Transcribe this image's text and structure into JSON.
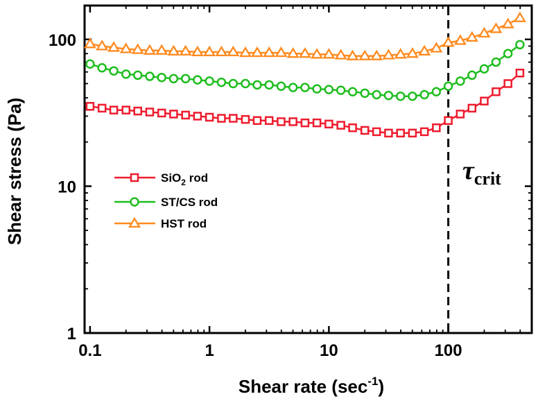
{
  "chart_data": {
    "type": "scatter",
    "title": "",
    "xlabel": "Shear rate (sec",
    "xlabel_sup": "-1",
    "xlabel_close": ")",
    "ylabel": "Shear stress (Pa)",
    "xscale": "log",
    "yscale": "log",
    "xlim": [
      0.09,
      500
    ],
    "ylim": [
      1,
      170
    ],
    "xticks": [
      0.1,
      1,
      10,
      100
    ],
    "xtick_labels": [
      "0.1",
      "1",
      "10",
      "100"
    ],
    "yticks": [
      1,
      10,
      100
    ],
    "ytick_labels": [
      "1",
      "10",
      "100"
    ],
    "legend_position": "left-middle",
    "annotation": {
      "symbol": "τ",
      "subscript": "crit",
      "x": 100
    },
    "series": [
      {
        "name_main": "SiO",
        "name_sub": "2",
        "name_rest": " rod",
        "marker": "square",
        "color": "#ee1c2e",
        "x": [
          0.1,
          0.126,
          0.158,
          0.2,
          0.251,
          0.316,
          0.398,
          0.501,
          0.631,
          0.794,
          1,
          1.26,
          1.58,
          2,
          2.51,
          3.16,
          3.98,
          5.01,
          6.31,
          7.94,
          10,
          12.6,
          15.8,
          20,
          25.1,
          31.6,
          39.8,
          50.1,
          63.1,
          79.4,
          100,
          126,
          158,
          200,
          251,
          316,
          398
        ],
        "y": [
          35,
          34,
          33,
          33,
          32.5,
          32,
          31.5,
          31,
          30.5,
          30,
          29.5,
          29,
          29,
          28.5,
          28,
          28,
          27.5,
          27.5,
          27,
          27,
          26.5,
          26,
          25,
          24,
          23.5,
          23,
          23,
          23,
          23.5,
          25,
          28,
          31,
          34,
          38,
          44,
          50,
          59
        ]
      },
      {
        "name_main": "ST/CS rod",
        "name_sub": "",
        "name_rest": "",
        "marker": "circle",
        "color": "#1ebd1e",
        "x": [
          0.1,
          0.126,
          0.158,
          0.2,
          0.251,
          0.316,
          0.398,
          0.501,
          0.631,
          0.794,
          1,
          1.26,
          1.58,
          2,
          2.51,
          3.16,
          3.98,
          5.01,
          6.31,
          7.94,
          10,
          12.6,
          15.8,
          20,
          25.1,
          31.6,
          39.8,
          50.1,
          63.1,
          79.4,
          100,
          126,
          158,
          200,
          251,
          316,
          398
        ],
        "y": [
          68,
          64,
          61,
          58,
          57,
          56,
          55,
          54,
          54,
          53,
          52,
          51,
          50,
          50,
          49,
          49,
          48,
          47,
          47,
          46,
          45.5,
          45,
          44,
          43,
          42,
          41.5,
          41,
          41,
          42,
          44,
          48,
          52,
          57,
          63,
          70,
          80,
          92
        ]
      },
      {
        "name_main": "HST rod",
        "name_sub": "",
        "name_rest": "",
        "marker": "triangle",
        "color": "#ff8a1f",
        "x": [
          0.1,
          0.126,
          0.158,
          0.2,
          0.251,
          0.316,
          0.398,
          0.501,
          0.631,
          0.794,
          1,
          1.26,
          1.58,
          2,
          2.51,
          3.16,
          3.98,
          5.01,
          6.31,
          7.94,
          10,
          12.6,
          15.8,
          20,
          25.1,
          31.6,
          39.8,
          50.1,
          63.1,
          79.4,
          100,
          126,
          158,
          200,
          251,
          316,
          398
        ],
        "y": [
          93,
          90,
          88,
          86,
          85,
          84,
          84,
          83,
          83,
          82,
          82,
          82,
          82,
          81,
          81,
          81,
          81,
          80,
          80,
          79,
          79,
          78,
          77,
          77,
          77,
          78,
          79,
          80,
          83,
          87,
          95,
          98,
          103,
          110,
          118,
          127,
          140
        ]
      }
    ]
  }
}
